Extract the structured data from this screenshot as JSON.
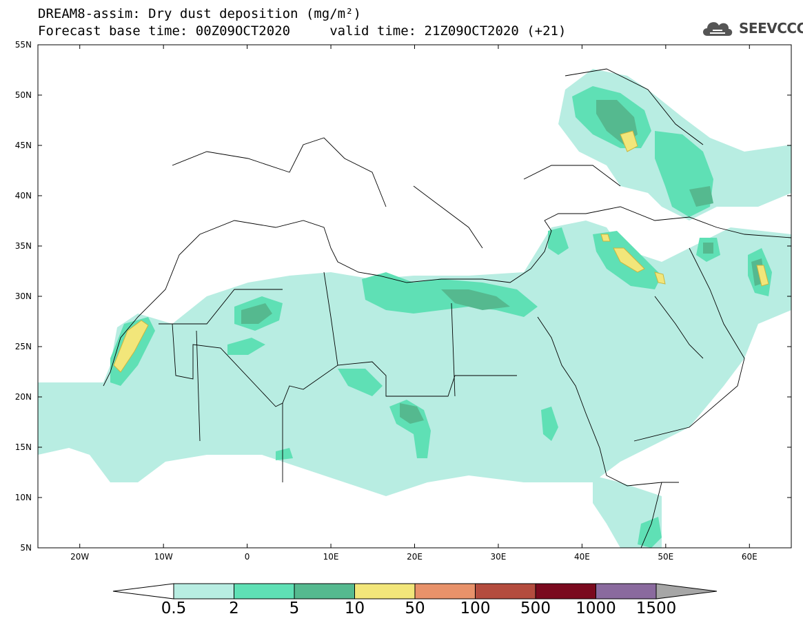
{
  "header": {
    "title_line1": "DREAM8-assim: Dry dust deposition (mg/m²)",
    "title_line2": "Forecast base time: 00Z09OCT2020     valid time: 21Z09OCT2020 (+21)",
    "logo_text": "SEEVCCC"
  },
  "map": {
    "lon_range": [
      -25,
      65
    ],
    "lat_range": [
      5,
      55
    ],
    "x_tick_labels": [
      "20W",
      "10W",
      "0",
      "10E",
      "20E",
      "30E",
      "40E",
      "50E",
      "60E"
    ],
    "y_tick_labels": [
      "55N",
      "50N",
      "45N",
      "40N",
      "35N",
      "30N",
      "25N",
      "20N",
      "15N",
      "10N",
      "5N"
    ]
  },
  "colorbar": {
    "labels": [
      "0.5",
      "2",
      "5",
      "10",
      "50",
      "100",
      "500",
      "1000",
      "1500"
    ],
    "colors": [
      "#b8ede2",
      "#5fe0b5",
      "#55b98f",
      "#f2e67a",
      "#e8926a",
      "#b44c3e",
      "#7a0a1e",
      "#8a6a9e",
      "#a6a6a6"
    ],
    "under_color": "#ffffff"
  }
}
